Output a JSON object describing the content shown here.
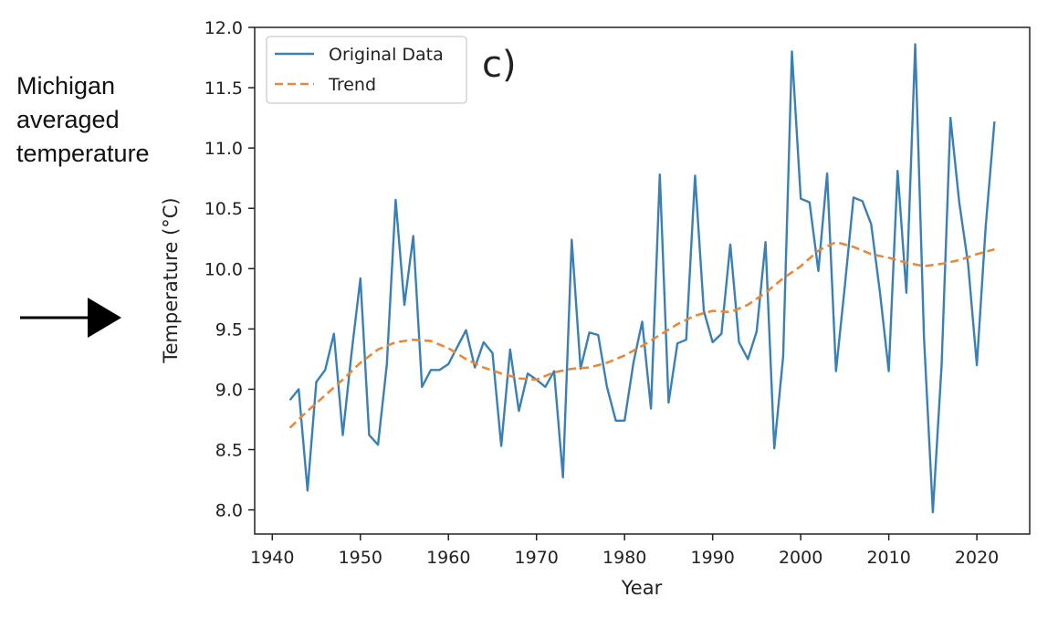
{
  "side_label": {
    "lines": [
      "Michigan",
      "averaged",
      "temperature"
    ]
  },
  "panel_label": "c)",
  "colors": {
    "original": "#3a80b4",
    "trend": "#e8893a",
    "axis": "#222222",
    "arrow": "#000000"
  },
  "icons": {
    "arrow": "right-arrow-icon"
  },
  "chart_data": {
    "type": "line",
    "title": "",
    "xlabel": "Year",
    "ylabel": "Temperature (°C)",
    "xlim": [
      1938,
      2026
    ],
    "ylim": [
      7.8,
      12.0
    ],
    "xticks": [
      1940,
      1950,
      1960,
      1970,
      1980,
      1990,
      2000,
      2010,
      2020
    ],
    "yticks": [
      8.0,
      8.5,
      9.0,
      9.5,
      10.0,
      10.5,
      11.0,
      11.5,
      12.0
    ],
    "xtick_labels": [
      "1940",
      "1950",
      "1960",
      "1970",
      "1980",
      "1990",
      "2000",
      "2010",
      "2020"
    ],
    "ytick_labels": [
      "8.0",
      "8.5",
      "9.0",
      "9.5",
      "10.0",
      "10.5",
      "11.0",
      "11.5",
      "12.0"
    ],
    "grid": false,
    "legend": {
      "position": "top-left",
      "entries": [
        "Original Data",
        "Trend"
      ]
    },
    "series": [
      {
        "name": "Original Data",
        "style": "solid",
        "x": [
          1942,
          1943,
          1944,
          1945,
          1946,
          1947,
          1948,
          1949,
          1950,
          1951,
          1952,
          1953,
          1954,
          1955,
          1956,
          1957,
          1958,
          1959,
          1960,
          1961,
          1962,
          1963,
          1964,
          1965,
          1966,
          1967,
          1968,
          1969,
          1970,
          1971,
          1972,
          1973,
          1974,
          1975,
          1976,
          1977,
          1978,
          1979,
          1980,
          1981,
          1982,
          1983,
          1984,
          1985,
          1986,
          1987,
          1988,
          1989,
          1990,
          1991,
          1992,
          1993,
          1994,
          1995,
          1996,
          1997,
          1998,
          1999,
          2000,
          2001,
          2002,
          2003,
          2004,
          2005,
          2006,
          2007,
          2008,
          2009,
          2010,
          2011,
          2012,
          2013,
          2014,
          2015,
          2016,
          2017,
          2018,
          2019,
          2020,
          2021,
          2022
        ],
        "values": [
          8.91,
          9.0,
          8.16,
          9.06,
          9.16,
          9.46,
          8.62,
          9.3,
          9.92,
          8.62,
          8.54,
          9.2,
          10.57,
          9.7,
          10.27,
          9.02,
          9.16,
          9.16,
          9.21,
          9.35,
          9.49,
          9.18,
          9.39,
          9.3,
          8.53,
          9.33,
          8.82,
          9.13,
          9.08,
          9.02,
          9.15,
          8.27,
          10.24,
          9.17,
          9.47,
          9.45,
          9.02,
          8.74,
          8.74,
          9.22,
          9.56,
          8.84,
          10.78,
          8.89,
          9.38,
          9.41,
          10.77,
          9.65,
          9.39,
          9.46,
          10.2,
          9.39,
          9.25,
          9.48,
          10.22,
          8.51,
          9.27,
          11.8,
          10.58,
          10.55,
          9.98,
          10.79,
          9.15,
          9.85,
          10.59,
          10.56,
          10.37,
          9.8,
          9.15,
          10.81,
          9.8,
          11.86,
          9.43,
          7.98,
          9.2,
          11.25,
          10.55,
          10.04,
          9.2,
          10.35,
          11.22
        ]
      },
      {
        "name": "Trend",
        "style": "dashed",
        "x": [
          1942,
          1944,
          1946,
          1948,
          1950,
          1952,
          1954,
          1956,
          1958,
          1960,
          1962,
          1964,
          1966,
          1968,
          1970,
          1972,
          1974,
          1976,
          1978,
          1980,
          1982,
          1984,
          1986,
          1988,
          1990,
          1992,
          1994,
          1996,
          1998,
          2000,
          2002,
          2004,
          2006,
          2008,
          2010,
          2012,
          2014,
          2016,
          2018,
          2020,
          2022
        ],
        "values": [
          8.68,
          8.82,
          8.95,
          9.08,
          9.22,
          9.33,
          9.39,
          9.41,
          9.4,
          9.34,
          9.25,
          9.18,
          9.13,
          9.09,
          9.08,
          9.14,
          9.17,
          9.18,
          9.22,
          9.28,
          9.36,
          9.45,
          9.54,
          9.61,
          9.65,
          9.64,
          9.7,
          9.8,
          9.92,
          10.02,
          10.15,
          10.22,
          10.18,
          10.12,
          10.09,
          10.05,
          10.02,
          10.04,
          10.07,
          10.12,
          10.16
        ]
      }
    ]
  }
}
